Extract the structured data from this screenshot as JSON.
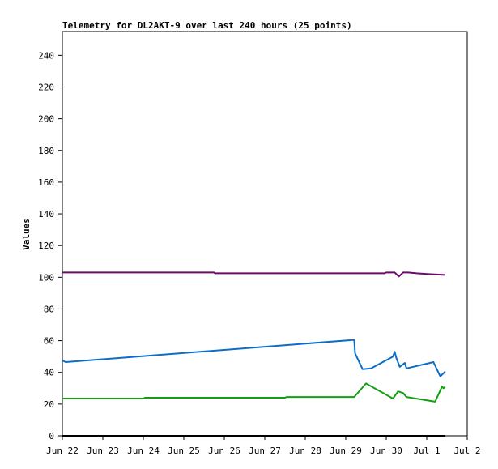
{
  "chart_data": {
    "type": "line",
    "title": "Telemetry for DL2AKT-9 over last 240 hours (25 points)",
    "xlabel": "",
    "ylabel": "Values",
    "xlim": [
      "2021-06-22T00:00",
      "2021-07-02T00:00"
    ],
    "ylim": [
      0,
      255
    ],
    "grid": false,
    "x_ticks": [
      "Jun 22",
      "Jun 23",
      "Jun 24",
      "Jun 25",
      "Jun 26",
      "Jun 27",
      "Jun 28",
      "Jun 29",
      "Jun 30",
      "Jul 1",
      "Jul 2"
    ],
    "y_ticks": [
      0,
      20,
      40,
      60,
      80,
      100,
      120,
      140,
      160,
      180,
      200,
      220,
      240
    ],
    "series": [
      {
        "color": "#000000",
        "points": [
          [
            "2021-06-22T00:00",
            0
          ],
          [
            "2021-07-01T11:00",
            0
          ]
        ]
      },
      {
        "color": "#6b0a6b",
        "points": [
          [
            "2021-06-22T00:00",
            103
          ],
          [
            "2021-06-25T18:00",
            103
          ],
          [
            "2021-06-25T18:30",
            102.5
          ],
          [
            "2021-06-29T23:00",
            102.5
          ],
          [
            "2021-06-30T00:00",
            103
          ],
          [
            "2021-06-30T05:00",
            103
          ],
          [
            "2021-06-30T07:30",
            100.5
          ],
          [
            "2021-06-30T10:00",
            103
          ],
          [
            "2021-06-30T13:00",
            103
          ],
          [
            "2021-06-30T18:00",
            102.5
          ],
          [
            "2021-07-01T01:00",
            102
          ],
          [
            "2021-07-01T11:00",
            101.5
          ]
        ]
      },
      {
        "color": "#0a6ec8",
        "points": [
          [
            "2021-06-22T00:00",
            47.5
          ],
          [
            "2021-06-22T02:00",
            46.5
          ],
          [
            "2021-06-29T05:00",
            60.5
          ],
          [
            "2021-06-29T05:30",
            52
          ],
          [
            "2021-06-29T10:00",
            42
          ],
          [
            "2021-06-29T15:00",
            42.5
          ],
          [
            "2021-06-30T04:00",
            50
          ],
          [
            "2021-06-30T05:00",
            53
          ],
          [
            "2021-06-30T06:00",
            49
          ],
          [
            "2021-06-30T08:00",
            43.5
          ],
          [
            "2021-06-30T11:00",
            46
          ],
          [
            "2021-06-30T12:00",
            42.5
          ],
          [
            "2021-07-01T04:00",
            46.5
          ],
          [
            "2021-07-01T08:00",
            37.5
          ],
          [
            "2021-07-01T11:00",
            40.5
          ]
        ]
      },
      {
        "color": "#12a012",
        "points": [
          [
            "2021-06-22T00:00",
            23.5
          ],
          [
            "2021-06-24T00:00",
            23.5
          ],
          [
            "2021-06-24T01:00",
            24
          ],
          [
            "2021-06-27T12:00",
            24
          ],
          [
            "2021-06-27T13:00",
            24.5
          ],
          [
            "2021-06-29T05:00",
            24.5
          ],
          [
            "2021-06-29T12:00",
            33
          ],
          [
            "2021-06-30T04:00",
            23.5
          ],
          [
            "2021-06-30T07:00",
            28
          ],
          [
            "2021-06-30T10:00",
            27
          ],
          [
            "2021-06-30T12:00",
            24.5
          ],
          [
            "2021-07-01T05:00",
            21.5
          ],
          [
            "2021-07-01T09:00",
            31
          ],
          [
            "2021-07-01T10:00",
            30
          ],
          [
            "2021-07-01T11:00",
            31
          ]
        ]
      }
    ]
  }
}
